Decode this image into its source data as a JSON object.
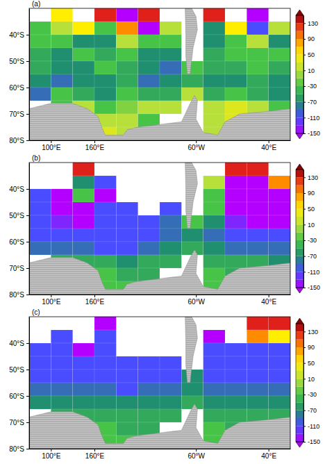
{
  "chart_data": [
    {
      "type": "heatmap",
      "title": "(a)",
      "x": [
        85,
        115,
        145,
        175,
        205,
        235,
        265,
        295,
        325,
        355,
        385,
        415
      ],
      "y": [
        -32.5,
        -37.5,
        -42.5,
        -47.5,
        -52.5,
        -57.5,
        -62.5,
        -67.5,
        -72.5,
        -77.5
      ],
      "values": [
        [
          null,
          50,
          null,
          130,
          -150,
          130,
          null,
          null,
          130,
          null,
          -150,
          null
        ],
        [
          -30,
          10,
          50,
          -30,
          90,
          -150,
          10,
          null,
          -70,
          50,
          -110,
          10
        ],
        [
          -30,
          -30,
          -70,
          -70,
          10,
          -30,
          -30,
          null,
          -70,
          -30,
          10,
          -70
        ],
        [
          -50,
          -70,
          -30,
          -50,
          -30,
          -70,
          -70,
          null,
          -50,
          -30,
          -30,
          -30
        ],
        [
          -50,
          -70,
          -70,
          -30,
          -50,
          -70,
          -90,
          -30,
          -50,
          -50,
          -30,
          -50
        ],
        [
          -70,
          -90,
          -70,
          -70,
          -50,
          -90,
          -70,
          -50,
          -70,
          -70,
          -50,
          -70
        ],
        [
          -90,
          -30,
          -50,
          -70,
          -30,
          -50,
          -50,
          10,
          -50,
          -30,
          -50,
          -70
        ],
        [
          null,
          -30,
          10,
          -30,
          -10,
          10,
          10,
          null,
          10,
          30,
          10,
          -30
        ],
        [
          null,
          null,
          10,
          10,
          10,
          -30,
          null,
          null,
          10,
          30,
          null,
          null
        ],
        [
          null,
          null,
          null,
          30,
          10,
          null,
          null,
          null,
          10,
          null,
          null,
          null
        ]
      ],
      "xlim": [
        70,
        430
      ],
      "xticks": [
        {
          "value": 100,
          "label": "100°E"
        },
        {
          "value": 160,
          "label": "160°E"
        },
        {
          "value": 300,
          "label": "60°W"
        },
        {
          "value": 400,
          "label": "40°E"
        }
      ],
      "ylim": [
        -80,
        -30
      ],
      "yticks": [
        {
          "value": -40,
          "label": "40°S"
        },
        {
          "value": -50,
          "label": "50°S"
        },
        {
          "value": -60,
          "label": "60°S"
        },
        {
          "value": -70,
          "label": "70°S"
        },
        {
          "value": -80,
          "label": "80°S"
        }
      ],
      "colorbar": {
        "range": [
          -150,
          150
        ],
        "ticks": [
          130,
          90,
          50,
          10,
          -30,
          -70,
          -110,
          -150
        ]
      }
    },
    {
      "type": "heatmap",
      "title": "(b)",
      "x": [
        85,
        115,
        145,
        175,
        205,
        235,
        265,
        295,
        325,
        355,
        385,
        415
      ],
      "y": [
        -32.5,
        -37.5,
        -42.5,
        -47.5,
        -52.5,
        -57.5,
        -62.5,
        -67.5,
        -72.5,
        -77.5
      ],
      "values": [
        [
          null,
          null,
          130,
          null,
          null,
          null,
          null,
          null,
          null,
          130,
          130,
          null
        ],
        [
          null,
          null,
          -70,
          -110,
          null,
          null,
          null,
          null,
          10,
          -150,
          -150,
          90
        ],
        [
          -110,
          -150,
          -30,
          -150,
          null,
          null,
          null,
          null,
          -30,
          -150,
          -150,
          -150
        ],
        [
          -110,
          -150,
          -150,
          -110,
          -110,
          null,
          -110,
          null,
          -30,
          -150,
          -150,
          -150
        ],
        [
          -110,
          -130,
          -150,
          -110,
          -110,
          -110,
          -90,
          -30,
          -70,
          -130,
          -150,
          -150
        ],
        [
          -110,
          -110,
          -110,
          -110,
          -110,
          -110,
          -90,
          -70,
          -90,
          -110,
          -110,
          -110
        ],
        [
          -90,
          -90,
          -90,
          -110,
          -110,
          -90,
          -70,
          -50,
          -70,
          -90,
          -90,
          -90
        ],
        [
          null,
          -50,
          -50,
          -50,
          -70,
          -50,
          -50,
          null,
          -50,
          -50,
          -50,
          -70
        ],
        [
          null,
          null,
          -30,
          -30,
          -50,
          -50,
          null,
          null,
          -30,
          -50,
          null,
          null
        ],
        [
          null,
          null,
          null,
          -30,
          -30,
          null,
          null,
          null,
          -30,
          null,
          null,
          null
        ]
      ],
      "xlim": [
        70,
        430
      ],
      "xticks": [
        {
          "value": 100,
          "label": "100°E"
        },
        {
          "value": 160,
          "label": "160°E"
        },
        {
          "value": 300,
          "label": "60°W"
        },
        {
          "value": 400,
          "label": "40°E"
        }
      ],
      "ylim": [
        -80,
        -30
      ],
      "yticks": [
        {
          "value": -40,
          "label": "40°S"
        },
        {
          "value": -50,
          "label": "50°S"
        },
        {
          "value": -60,
          "label": "60°S"
        },
        {
          "value": -70,
          "label": "70°S"
        },
        {
          "value": -80,
          "label": "80°S"
        }
      ],
      "colorbar": {
        "range": [
          -150,
          150
        ],
        "ticks": [
          130,
          90,
          50,
          10,
          -30,
          -70,
          -110,
          -150
        ]
      }
    },
    {
      "type": "heatmap",
      "title": "(c)",
      "x": [
        85,
        115,
        145,
        175,
        205,
        235,
        265,
        295,
        325,
        355,
        385,
        415
      ],
      "y": [
        -32.5,
        -37.5,
        -42.5,
        -47.5,
        -52.5,
        -57.5,
        -62.5,
        -67.5,
        -72.5,
        -77.5
      ],
      "values": [
        [
          null,
          null,
          null,
          -150,
          null,
          null,
          null,
          null,
          null,
          null,
          130,
          130
        ],
        [
          null,
          -110,
          null,
          -110,
          null,
          null,
          null,
          null,
          -150,
          null,
          90,
          50
        ],
        [
          -110,
          -110,
          -150,
          -110,
          null,
          null,
          null,
          null,
          -110,
          -110,
          -110,
          -110
        ],
        [
          -110,
          -110,
          -110,
          -110,
          -110,
          -110,
          -110,
          null,
          -110,
          -110,
          -110,
          -110
        ],
        [
          -110,
          -110,
          -110,
          -110,
          -110,
          -110,
          -110,
          -70,
          -110,
          -110,
          -110,
          -110
        ],
        [
          -90,
          -90,
          -90,
          -90,
          -110,
          -90,
          -90,
          -70,
          -90,
          -90,
          -90,
          -90
        ],
        [
          -70,
          -70,
          -70,
          -70,
          -70,
          -70,
          -70,
          -50,
          -70,
          -70,
          -70,
          -70
        ],
        [
          null,
          -50,
          -50,
          -50,
          -50,
          -50,
          -50,
          null,
          -50,
          -50,
          -50,
          -50
        ],
        [
          null,
          null,
          -30,
          -30,
          -50,
          -50,
          null,
          null,
          -30,
          -50,
          null,
          null
        ],
        [
          null,
          null,
          null,
          -30,
          -30,
          null,
          null,
          null,
          -30,
          null,
          null,
          null
        ]
      ],
      "xlim": [
        70,
        430
      ],
      "xticks": [
        {
          "value": 100,
          "label": "100°E"
        },
        {
          "value": 160,
          "label": "160°E"
        },
        {
          "value": 300,
          "label": "60°W"
        },
        {
          "value": 400,
          "label": "40°E"
        }
      ],
      "ylim": [
        -80,
        -30
      ],
      "yticks": [
        {
          "value": -40,
          "label": "40°S"
        },
        {
          "value": -50,
          "label": "50°S"
        },
        {
          "value": -60,
          "label": "60°S"
        },
        {
          "value": -70,
          "label": "70°S"
        },
        {
          "value": -80,
          "label": "80°S"
        }
      ],
      "colorbar": {
        "range": [
          -150,
          150
        ],
        "ticks": [
          130,
          90,
          50,
          10,
          -30,
          -70,
          -110,
          -150
        ]
      }
    }
  ]
}
